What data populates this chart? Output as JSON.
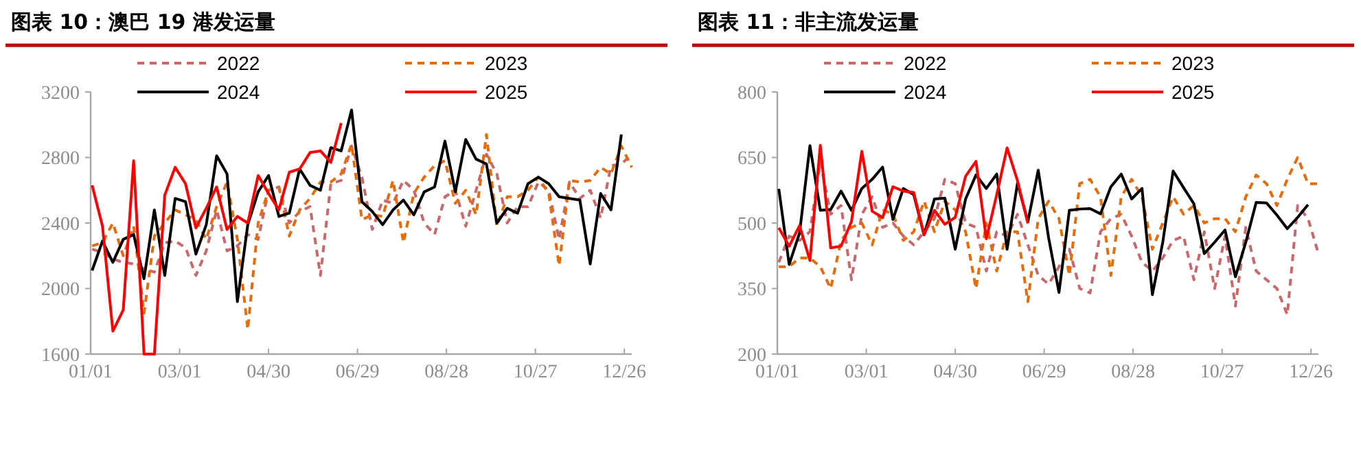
{
  "chart_data": [
    {
      "type": "line",
      "title": "图表 10：澳巴 19 港发运量",
      "x": [
        "--01-02",
        "--01-09",
        "--01-16",
        "--01-23",
        "--01-30",
        "--02-06",
        "--02-13",
        "--02-20",
        "--02-27",
        "--03-05",
        "--03-12",
        "--03-19",
        "--03-26",
        "--04-02",
        "--04-09",
        "--04-16",
        "--04-23",
        "--04-30",
        "--05-07",
        "--05-14",
        "--05-21",
        "--05-28",
        "--06-04",
        "--06-11",
        "--06-18",
        "--06-25",
        "--07-02",
        "--07-09",
        "--07-16",
        "--07-23",
        "--07-30",
        "--08-06",
        "--08-13",
        "--08-20",
        "--08-27",
        "--09-03",
        "--09-10",
        "--09-17",
        "--09-24",
        "--10-01",
        "--10-08",
        "--10-15",
        "--10-22",
        "--10-29",
        "--11-05",
        "--11-12",
        "--11-19",
        "--11-26",
        "--12-03",
        "--12-10",
        "--12-17",
        "--12-24",
        "--12-31"
      ],
      "xlim": [
        "--01-01",
        "--12-31"
      ],
      "xticks": [
        {
          "value": "--01-01",
          "label": "01/01"
        },
        {
          "value": "--03-01",
          "label": "03/01"
        },
        {
          "value": "--04-30",
          "label": "04/30"
        },
        {
          "value": "--06-29",
          "label": "06/29"
        },
        {
          "value": "--08-28",
          "label": "08/28"
        },
        {
          "value": "--10-27",
          "label": "10/27"
        },
        {
          "value": "--12-26",
          "label": "12/26"
        }
      ],
      "ylim": [
        1600,
        3200
      ],
      "yticks": [
        1600,
        2000,
        2400,
        2800,
        3200
      ],
      "grid": false,
      "legend": "top",
      "series": [
        {
          "name": "2022",
          "color": "#c9686b",
          "line_style": "dashed",
          "values": [
            2240,
            2220,
            2180,
            2160,
            2150,
            2120,
            2100,
            2280,
            2290,
            2250,
            2080,
            2230,
            2480,
            2230,
            2260,
            2330,
            2300,
            2600,
            2620,
            2400,
            2470,
            2500,
            2080,
            2640,
            2660,
            2870,
            2680,
            2360,
            2540,
            2520,
            2660,
            2600,
            2400,
            2330,
            2560,
            2600,
            2380,
            2600,
            2820,
            2700,
            2400,
            2500,
            2500,
            2650,
            2600,
            2300,
            2650,
            2550,
            2600,
            2430,
            2750,
            2760,
            2820
          ]
        },
        {
          "name": "2023",
          "color": "#e46c0a",
          "line_style": "dashed",
          "values": [
            2260,
            2280,
            2400,
            2200,
            2380,
            1850,
            2320,
            2400,
            2480,
            2450,
            2420,
            2300,
            2500,
            2650,
            2300,
            1750,
            2400,
            2600,
            2620,
            2320,
            2480,
            2550,
            2650,
            2650,
            2700,
            2880,
            2420,
            2450,
            2440,
            2660,
            2280,
            2580,
            2680,
            2750,
            2780,
            2520,
            2600,
            2450,
            2940,
            2380,
            2560,
            2560,
            2600,
            2680,
            2580,
            2140,
            2660,
            2650,
            2660,
            2740,
            2700,
            2870,
            2740
          ]
        },
        {
          "name": "2024",
          "color": "#000000",
          "line_style": "solid",
          "values": [
            2110,
            2290,
            2160,
            2300,
            2330,
            2060,
            2480,
            2080,
            2550,
            2530,
            2210,
            2390,
            2810,
            2700,
            1920,
            2390,
            2590,
            2690,
            2440,
            2460,
            2730,
            2630,
            2600,
            2860,
            2840,
            3090,
            2530,
            2470,
            2390,
            2480,
            2540,
            2450,
            2590,
            2620,
            2900,
            2590,
            2910,
            2790,
            2760,
            2400,
            2490,
            2460,
            2640,
            2680,
            2640,
            2560,
            2550,
            2540,
            2150,
            2580,
            2480,
            2940,
            null
          ]
        },
        {
          "name": "2025",
          "color": "#ff0000",
          "line_style": "solid",
          "values": [
            2630,
            2380,
            1740,
            1870,
            2780,
            1600,
            1600,
            2570,
            2740,
            2640,
            2370,
            2490,
            2620,
            2360,
            2440,
            2400,
            2690,
            2580,
            2480,
            2710,
            2730,
            2830,
            2840,
            2770,
            3010,
            null,
            null,
            null,
            null,
            null,
            null,
            null,
            null,
            null,
            null,
            null,
            null,
            null,
            null,
            null,
            null,
            null,
            null,
            null,
            null,
            null,
            null,
            null,
            null,
            null,
            null,
            null,
            null
          ]
        }
      ]
    },
    {
      "type": "line",
      "title": "图表 11：非主流发运量",
      "x": [
        "--01-02",
        "--01-09",
        "--01-16",
        "--01-23",
        "--01-30",
        "--02-06",
        "--02-13",
        "--02-20",
        "--02-27",
        "--03-05",
        "--03-12",
        "--03-19",
        "--03-26",
        "--04-02",
        "--04-09",
        "--04-16",
        "--04-23",
        "--04-30",
        "--05-07",
        "--05-14",
        "--05-21",
        "--05-28",
        "--06-04",
        "--06-11",
        "--06-18",
        "--06-25",
        "--07-02",
        "--07-09",
        "--07-16",
        "--07-23",
        "--07-30",
        "--08-06",
        "--08-13",
        "--08-20",
        "--08-27",
        "--09-03",
        "--09-10",
        "--09-17",
        "--09-24",
        "--10-01",
        "--10-08",
        "--10-15",
        "--10-22",
        "--10-29",
        "--11-05",
        "--11-12",
        "--11-19",
        "--11-26",
        "--12-03",
        "--12-10",
        "--12-17",
        "--12-24",
        "--12-31"
      ],
      "xlim": [
        "--01-01",
        "--12-31"
      ],
      "xticks": [
        {
          "value": "--01-01",
          "label": "01/01"
        },
        {
          "value": "--03-01",
          "label": "03/01"
        },
        {
          "value": "--04-30",
          "label": "04/30"
        },
        {
          "value": "--06-29",
          "label": "06/29"
        },
        {
          "value": "--08-28",
          "label": "08/28"
        },
        {
          "value": "--10-27",
          "label": "10/27"
        },
        {
          "value": "--12-26",
          "label": "12/26"
        }
      ],
      "ylim": [
        200,
        800
      ],
      "yticks": [
        200,
        350,
        500,
        650,
        800
      ],
      "grid": false,
      "legend": "top",
      "series": [
        {
          "name": "2022",
          "color": "#c9686b",
          "line_style": "dashed",
          "values": [
            410,
            470,
            460,
            480,
            640,
            520,
            540,
            370,
            520,
            560,
            490,
            500,
            470,
            450,
            480,
            510,
            600,
            590,
            500,
            490,
            390,
            480,
            470,
            520,
            450,
            380,
            360,
            400,
            440,
            350,
            340,
            480,
            510,
            520,
            470,
            410,
            390,
            420,
            460,
            470,
            370,
            480,
            350,
            470,
            310,
            490,
            390,
            370,
            350,
            290,
            540,
            510,
            430
          ]
        },
        {
          "name": "2023",
          "color": "#e46c0a",
          "line_style": "dashed",
          "values": [
            400,
            400,
            420,
            420,
            400,
            350,
            460,
            490,
            500,
            450,
            530,
            520,
            460,
            480,
            550,
            480,
            550,
            530,
            480,
            350,
            500,
            390,
            480,
            480,
            320,
            510,
            550,
            510,
            380,
            590,
            600,
            560,
            380,
            560,
            600,
            560,
            440,
            500,
            560,
            520,
            540,
            500,
            510,
            510,
            480,
            560,
            610,
            590,
            540,
            600,
            650,
            590,
            590
          ]
        },
        {
          "name": "2024",
          "color": "#000000",
          "line_style": "solid",
          "values": [
            578,
            405,
            477,
            677,
            529,
            531,
            573,
            529,
            579,
            600,
            628,
            508,
            579,
            565,
            473,
            555,
            557,
            440,
            555,
            610,
            579,
            612,
            440,
            591,
            503,
            621,
            466,
            341,
            529,
            532,
            533,
            521,
            583,
            612,
            555,
            579,
            336,
            456,
            619,
            581,
            544,
            430,
            456,
            484,
            377,
            456,
            547,
            546,
            518,
            487,
            513,
            542,
            null
          ]
        },
        {
          "name": "2025",
          "color": "#ff0000",
          "line_style": "solid",
          "values": [
            489,
            447,
            494,
            414,
            678,
            443,
            447,
            503,
            664,
            527,
            512,
            583,
            573,
            570,
            473,
            529,
            497,
            513,
            607,
            641,
            464,
            565,
            672,
            597,
            499,
            null,
            null,
            null,
            null,
            null,
            null,
            null,
            null,
            null,
            null,
            null,
            null,
            null,
            null,
            null,
            null,
            null,
            null,
            null,
            null,
            null,
            null,
            null,
            null,
            null,
            null,
            null,
            null
          ]
        }
      ]
    }
  ]
}
